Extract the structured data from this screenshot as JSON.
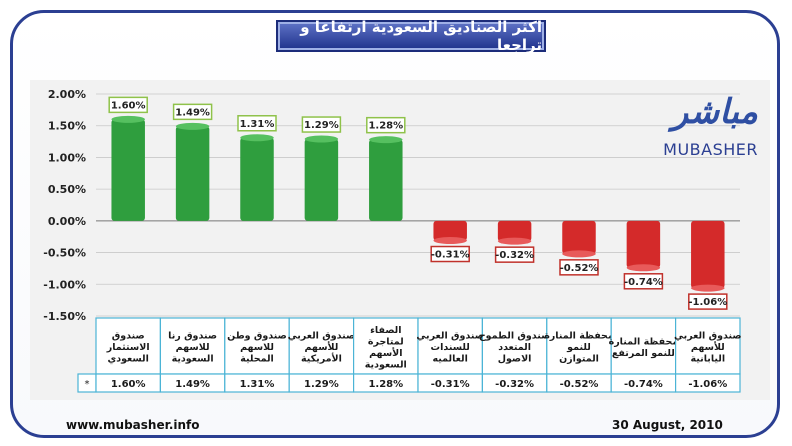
{
  "title": "اكثر الصناديق السعودية ارتفاعا و تراجعا",
  "footer": {
    "url": "www.mubasher.info",
    "date": "30 August, 2010"
  },
  "logo": {
    "arabic": "مباشر",
    "english": "MUBASHER"
  },
  "table": {
    "series_marker": "*"
  },
  "colors": {
    "positive": "#2f9e3e",
    "negative": "#d42a2a",
    "positive_label_border": "#8fc24a",
    "negative_label_border": "#c0312b",
    "table_border": "#4bb4d6",
    "frame": "#2b3f92"
  },
  "chart_data": {
    "type": "bar",
    "title": "اكثر الصناديق السعودية ارتفاعا و تراجعا",
    "categories": [
      "صندوق الاستثمار السعودي",
      "صندوق رنا للاسهم السعودية",
      "صندوق وطن للاسهم المحلية",
      "صندوق العربي للأسهم الأمريكية",
      "الصفاء لمتاجرة الأسهم السعودية",
      "صندوق العربي للسندات العالميه",
      "صندوق الطموح المتعدد الاصول",
      "محفظة المنارة للنمو المتوازن",
      "محفظة المنارة للنمو المرتفع",
      "صندوق العربي للأسهم اليابانية"
    ],
    "values": [
      1.6,
      1.49,
      1.31,
      1.29,
      1.28,
      -0.31,
      -0.32,
      -0.52,
      -0.74,
      -1.06
    ],
    "value_labels": [
      "1.60%",
      "1.49%",
      "1.31%",
      "1.29%",
      "1.28%",
      "-0.31%",
      "-0.32%",
      "-0.52%",
      "-0.74%",
      "-1.06%"
    ],
    "ylim": [
      -1.5,
      2.0
    ],
    "yticks": [
      "2.00%",
      "1.50%",
      "1.00%",
      "0.50%",
      "0.00%",
      "-0.50%",
      "-1.00%",
      "-1.50%"
    ],
    "ytick_values": [
      2.0,
      1.5,
      1.0,
      0.5,
      0.0,
      -0.5,
      -1.0,
      -1.5
    ],
    "grid": true,
    "legend": "none"
  }
}
